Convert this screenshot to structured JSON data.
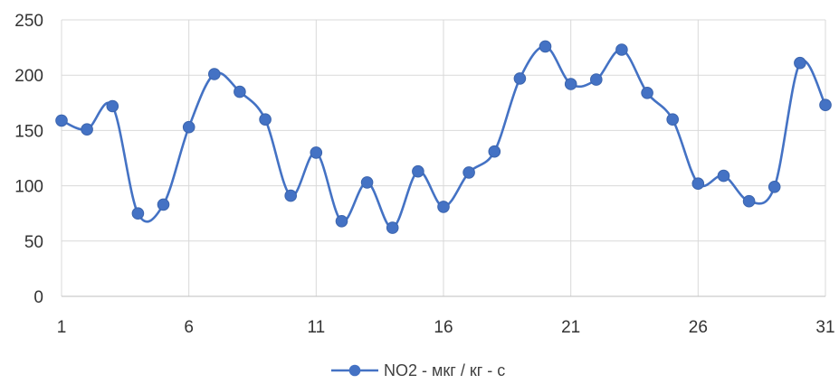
{
  "chart_data": {
    "type": "line",
    "title": "",
    "xlabel": "",
    "ylabel": "",
    "x": [
      1,
      2,
      3,
      4,
      5,
      6,
      7,
      8,
      9,
      10,
      11,
      12,
      13,
      14,
      15,
      16,
      17,
      18,
      19,
      20,
      21,
      22,
      23,
      24,
      25,
      26,
      27,
      28,
      29,
      30,
      31
    ],
    "series": [
      {
        "name": "NO2 - мкг / кг - с",
        "color": "#4472c4",
        "values": [
          159,
          151,
          172,
          75,
          83,
          153,
          201,
          185,
          160,
          91,
          130,
          68,
          103,
          62,
          113,
          81,
          112,
          131,
          197,
          226,
          192,
          196,
          223,
          184,
          160,
          102,
          109,
          86,
          99,
          211,
          173
        ]
      }
    ],
    "ylim": [
      0,
      250
    ],
    "yticks": [
      0,
      50,
      100,
      150,
      200,
      250
    ],
    "xlim": [
      1,
      31
    ],
    "xticks": [
      1,
      6,
      11,
      16,
      21,
      26,
      31
    ],
    "grid": true,
    "legend": "bottom",
    "smooth": true
  }
}
